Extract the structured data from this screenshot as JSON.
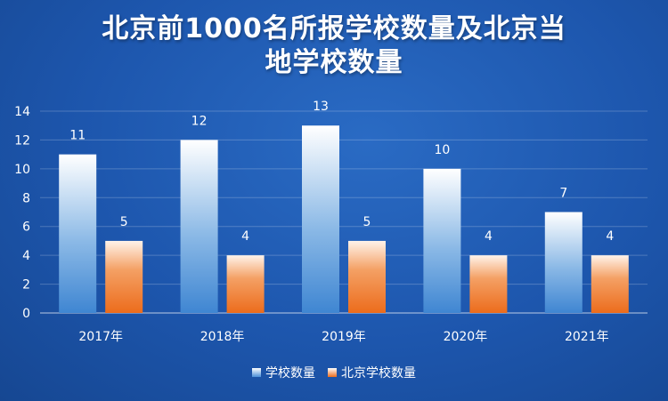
{
  "chart_data": {
    "type": "bar",
    "title_lines": [
      "北京前1000名所报学校数量及北京当",
      "地学校数量"
    ],
    "categories": [
      "2017年",
      "2018年",
      "2019年",
      "2020年",
      "2021年"
    ],
    "series": [
      {
        "name": "学校数量",
        "values": [
          11,
          12,
          13,
          10,
          7
        ],
        "color": "#5b9bd5"
      },
      {
        "name": "北京学校数量",
        "values": [
          5,
          4,
          5,
          4,
          4
        ],
        "color": "#ed7d31"
      }
    ],
    "ylim": [
      0,
      14
    ],
    "yticks": [
      0,
      2,
      4,
      6,
      8,
      10,
      12,
      14
    ],
    "grid": true,
    "legend": "bottom"
  }
}
